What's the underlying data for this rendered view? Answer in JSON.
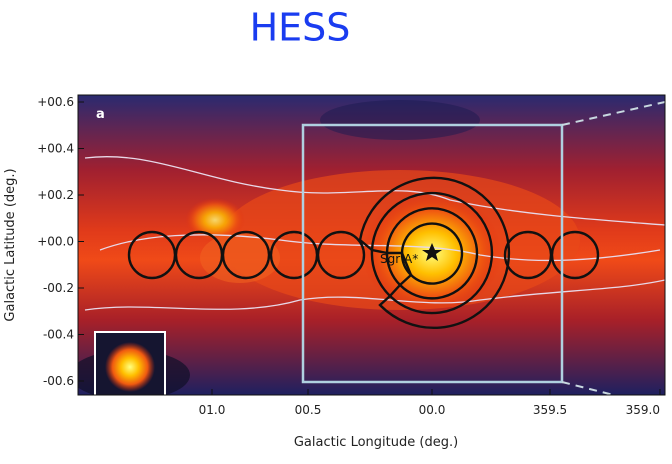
{
  "title": "HESS",
  "figure": {
    "panel_label": "a",
    "source_label": "Sgr A*",
    "x_axis": {
      "label": "Galactic Longitude (deg.)",
      "ticks": [
        "01.0",
        "00.5",
        "00.0",
        "359.5",
        "359.0"
      ]
    },
    "y_axis": {
      "label": "Galactic Latitude (deg.)",
      "ticks": [
        "+00.6",
        "+00.4",
        "+00.2",
        "+00.0",
        "-00.2",
        "-00.4",
        "-00.6"
      ]
    }
  }
}
